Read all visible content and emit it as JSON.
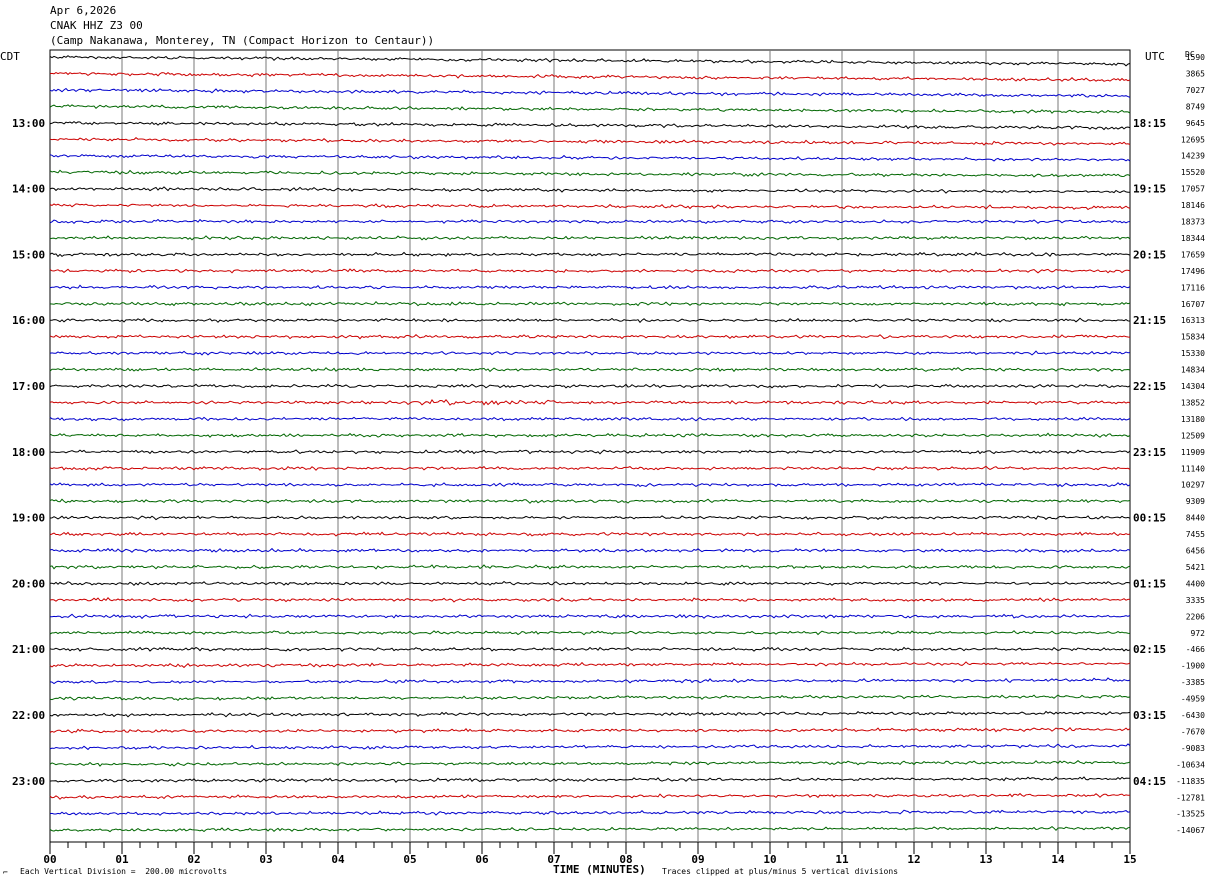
{
  "header": {
    "date": "Apr 6,2026",
    "station": "CNAK HHZ Z3 00",
    "location": "(Camp Nakanawa, Monterey, TN (Compact Horizon to Centaur))"
  },
  "left_axis_title": "CDT",
  "right_axis_title": "UTC",
  "dc_title": "DC",
  "footer": {
    "scale_note": "Each Vertical Division =  200.00 microvolts",
    "time_label": "TIME (MINUTES)",
    "clip_note": "Traces clipped at plus/minus 5 vertical divisions"
  },
  "chart_data": {
    "type": "line",
    "title": "CNAK HHZ Z3 00",
    "xlabel": "TIME (MINUTES)",
    "x_tick_labels": [
      "00",
      "01",
      "02",
      "03",
      "04",
      "05",
      "06",
      "07",
      "08",
      "09",
      "10",
      "11",
      "12",
      "13",
      "14",
      "15"
    ],
    "xlim": [
      0,
      15
    ],
    "left_hour_labels": [
      "13:00",
      "14:00",
      "15:00",
      "16:00",
      "17:00",
      "18:00",
      "19:00",
      "20:00",
      "21:00",
      "22:00",
      "23:00"
    ],
    "right_hour_labels": [
      "18:15",
      "19:15",
      "20:15",
      "21:15",
      "22:15",
      "23:15",
      "00:15",
      "01:15",
      "02:15",
      "03:15",
      "04:15"
    ],
    "trace_colors": [
      "#000000",
      "#cc0000",
      "#0000cc",
      "#006600"
    ],
    "trace_count": 48,
    "dc_offsets": [
      "1590",
      "3865",
      "7027",
      "8749",
      "9645",
      "12695",
      "14239",
      "15520",
      "17057",
      "18146",
      "18373",
      "18344",
      "17659",
      "17496",
      "17116",
      "16707",
      "16313",
      "15834",
      "15330",
      "14834",
      "14304",
      "13852",
      "13180",
      "12509",
      "11909",
      "11140",
      "10297",
      "9309",
      "8440",
      "7455",
      "6456",
      "5421",
      "4400",
      "3335",
      "2206",
      "972",
      "-466",
      "-1900",
      "-3385",
      "-4959",
      "-6430",
      "-7670",
      "-9083",
      "-10634",
      "-11835",
      "-12781",
      "-13525",
      "-14067"
    ]
  }
}
